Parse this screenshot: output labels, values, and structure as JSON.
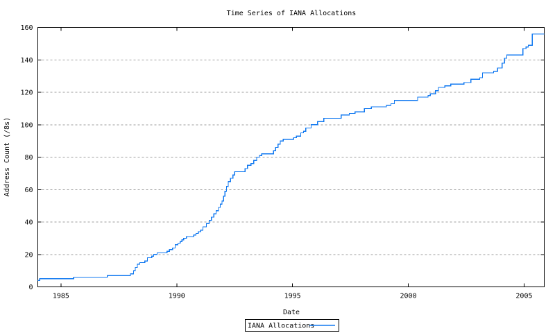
{
  "colors": {
    "line": "#1078f0",
    "grid": "#9e9e9e",
    "frame": "#000000",
    "background": "#ffffff"
  },
  "legend": {
    "label": "IANA Allocations"
  },
  "chart_data": {
    "type": "line",
    "style": "steps-post",
    "title": "Time Series of IANA Allocations",
    "xlabel": "Date",
    "ylabel": "Address Count (/8s)",
    "xlim": [
      1984.0,
      2005.87
    ],
    "ylim": [
      0,
      160
    ],
    "x_ticks": [
      1985,
      1990,
      1995,
      2000,
      2005
    ],
    "y_ticks": [
      0,
      20,
      40,
      60,
      80,
      100,
      120,
      140,
      160
    ],
    "grid": "horizontal-dashed",
    "legend_position": "below-plot-center",
    "series": [
      {
        "name": "IANA Allocations",
        "points": [
          [
            1984.0,
            4
          ],
          [
            1984.08,
            5
          ],
          [
            1985.55,
            6
          ],
          [
            1987.0,
            7
          ],
          [
            1988.0,
            8
          ],
          [
            1988.13,
            10
          ],
          [
            1988.21,
            12
          ],
          [
            1988.3,
            14
          ],
          [
            1988.4,
            15
          ],
          [
            1988.62,
            16
          ],
          [
            1988.73,
            18
          ],
          [
            1988.92,
            19
          ],
          [
            1989.0,
            20
          ],
          [
            1989.15,
            21
          ],
          [
            1989.58,
            22
          ],
          [
            1989.68,
            23
          ],
          [
            1989.82,
            24
          ],
          [
            1989.93,
            26
          ],
          [
            1990.05,
            27
          ],
          [
            1990.15,
            28
          ],
          [
            1990.22,
            29
          ],
          [
            1990.3,
            30
          ],
          [
            1990.42,
            31
          ],
          [
            1990.73,
            32
          ],
          [
            1990.83,
            33
          ],
          [
            1990.93,
            34
          ],
          [
            1991.03,
            35
          ],
          [
            1991.13,
            37
          ],
          [
            1991.28,
            39
          ],
          [
            1991.4,
            41
          ],
          [
            1991.5,
            43
          ],
          [
            1991.6,
            45
          ],
          [
            1991.7,
            47
          ],
          [
            1991.8,
            49
          ],
          [
            1991.88,
            51
          ],
          [
            1991.95,
            53
          ],
          [
            1992.02,
            56
          ],
          [
            1992.08,
            59
          ],
          [
            1992.15,
            62
          ],
          [
            1992.22,
            65
          ],
          [
            1992.32,
            67
          ],
          [
            1992.42,
            69
          ],
          [
            1992.5,
            71
          ],
          [
            1992.95,
            73
          ],
          [
            1993.05,
            75
          ],
          [
            1993.2,
            76
          ],
          [
            1993.32,
            78
          ],
          [
            1993.45,
            80
          ],
          [
            1993.57,
            81
          ],
          [
            1993.67,
            82
          ],
          [
            1994.18,
            84
          ],
          [
            1994.27,
            86
          ],
          [
            1994.37,
            88
          ],
          [
            1994.47,
            90
          ],
          [
            1994.6,
            91
          ],
          [
            1995.05,
            92
          ],
          [
            1995.17,
            93
          ],
          [
            1995.35,
            95
          ],
          [
            1995.47,
            96
          ],
          [
            1995.57,
            98
          ],
          [
            1995.8,
            100
          ],
          [
            1996.08,
            102
          ],
          [
            1996.35,
            104
          ],
          [
            1997.1,
            106
          ],
          [
            1997.45,
            107
          ],
          [
            1997.7,
            108
          ],
          [
            1998.1,
            110
          ],
          [
            1998.4,
            111
          ],
          [
            1999.05,
            112
          ],
          [
            1999.25,
            113
          ],
          [
            1999.4,
            115
          ],
          [
            2000.4,
            117
          ],
          [
            2000.85,
            118
          ],
          [
            2000.95,
            119
          ],
          [
            2001.17,
            121
          ],
          [
            2001.3,
            123
          ],
          [
            2001.58,
            124
          ],
          [
            2001.83,
            125
          ],
          [
            2002.4,
            126
          ],
          [
            2002.7,
            128
          ],
          [
            2003.08,
            129
          ],
          [
            2003.2,
            132
          ],
          [
            2003.68,
            133
          ],
          [
            2003.85,
            135
          ],
          [
            2004.05,
            138
          ],
          [
            2004.15,
            141
          ],
          [
            2004.25,
            143
          ],
          [
            2004.95,
            147
          ],
          [
            2005.08,
            148
          ],
          [
            2005.18,
            149
          ],
          [
            2005.35,
            156
          ]
        ]
      }
    ]
  }
}
